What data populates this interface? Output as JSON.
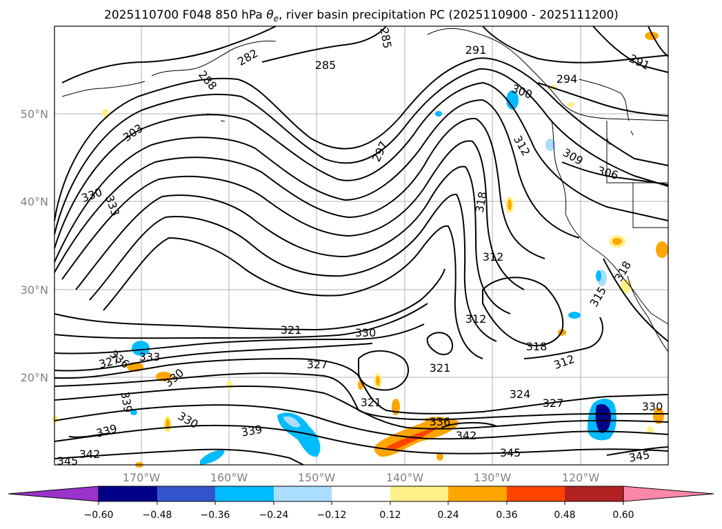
{
  "title": {
    "prefix": "2025110700 F048 850 hPa ",
    "theta_symbol": "θ",
    "theta_sub": "e",
    "suffix": ", river basin precipitation PC (2025110900 - 2025111200)"
  },
  "axes": {
    "lat_labels": [
      "50°N",
      "40°N",
      "30°N",
      "20°N"
    ],
    "lon_labels": [
      "170°W",
      "160°W",
      "150°W",
      "140°W",
      "130°W",
      "120°W"
    ]
  },
  "contour_labels": [
    "285",
    "285",
    "282",
    "288",
    "291",
    "291",
    "294",
    "300",
    "303",
    "297",
    "312",
    "309",
    "306",
    "330",
    "333",
    "318",
    "312",
    "312",
    "315",
    "318",
    "321",
    "330",
    "327",
    "321",
    "318",
    "312",
    "333",
    "327",
    "336",
    "330",
    "330",
    "339",
    "339",
    "342",
    "345",
    "339",
    "321",
    "336",
    "342",
    "324",
    "327",
    "330",
    "345",
    "345"
  ],
  "colorbar": {
    "ticks": [
      "−0.60",
      "−0.48",
      "−0.36",
      "−0.24",
      "−0.12",
      "0.12",
      "0.24",
      "0.36",
      "0.48",
      "0.60"
    ],
    "colors": {
      "under": "#9933cc",
      "levels": [
        "#000088",
        "#3355cc",
        "#00bbff",
        "#aaddff",
        "#ffffff",
        "#fff08a",
        "#ffa500",
        "#ff4400",
        "#b22222"
      ],
      "over": "#ff88aa"
    }
  }
}
